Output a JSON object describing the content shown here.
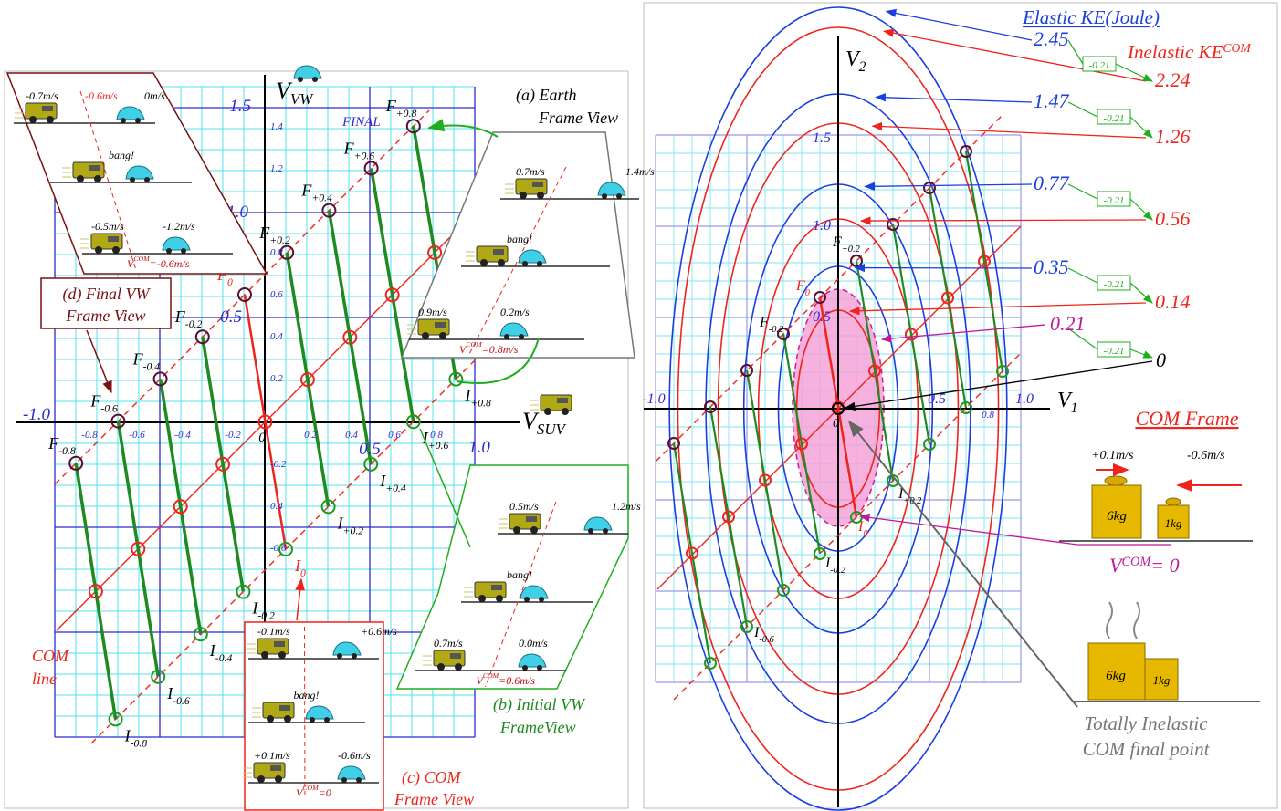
{
  "left_panel": {
    "axes": {
      "x_label": "V",
      "x_label_sub": "SUV",
      "y_label": "V",
      "y_label_sub": "VW",
      "major_y_ticks": [
        "1.5",
        "1.0",
        "0.5"
      ],
      "major_x_ticks": [
        "-1.0",
        "0.5",
        "1.0"
      ],
      "minor_y_ticks": [
        "1.4",
        "1.2",
        "0.8",
        "0.6",
        "0.4",
        "0.2",
        "-0.2",
        "0.4",
        "-0.6"
      ],
      "minor_x_ticks": [
        "-0.8",
        "-0.6",
        "-0.4",
        "-0.2",
        "0",
        "0.2",
        "0.4",
        "0.6",
        "0.8"
      ]
    },
    "final_label": "FINAL",
    "final_points": {
      "symbol": "F",
      "subs": [
        "-0.8",
        "-0.6",
        "-0.4",
        "-0.2",
        "0",
        "+0.2",
        "+0.4",
        "+0.6",
        "+0.8"
      ]
    },
    "initial_points": {
      "symbol": "I",
      "subs": [
        "-0.8",
        "-0.6",
        "-0.4",
        "-0.2",
        "0",
        "+0.2",
        "+0.4",
        "+0.6",
        "+0.8"
      ]
    },
    "com_line_label": [
      "COM",
      "line"
    ],
    "inset_a": {
      "title": [
        "(a)  Earth",
        "Frame View"
      ],
      "top_speeds": [
        "0.7m/s",
        "1.4m/s"
      ],
      "bang": "bang!",
      "bottom_speeds": [
        "0.9m/s",
        "0.2m/s"
      ],
      "v_com": {
        "symbol": "V",
        "sup": "COM",
        "value": "=0.8m/s"
      }
    },
    "inset_b": {
      "title": [
        "(b) Initial VW",
        "FrameView"
      ],
      "top_speeds": [
        "0.5m/s",
        "1.2m/s"
      ],
      "bang": "bang!",
      "bottom_speeds": [
        "0.7m/s",
        "0.0m/s"
      ],
      "v_com": {
        "symbol": "V",
        "sup": "COM",
        "value": "=0.6m/s"
      }
    },
    "inset_c": {
      "title": [
        "(c)  COM",
        "Frame View"
      ],
      "top_speeds": [
        "-0.1m/s",
        "+0.6m/s"
      ],
      "bang": "bang!",
      "bottom_speeds": [
        "+0.1m/s",
        "-0.6m/s"
      ],
      "v_com": {
        "symbol": "V",
        "sup": "COM",
        "value": "=0"
      }
    },
    "inset_d": {
      "title": [
        "(d) Final VW",
        "Frame View"
      ],
      "top_speeds": [
        "-0.7m/s",
        "-0.6m/s",
        "0m/s"
      ],
      "bang": "bang!",
      "bottom_speeds": [
        "-0.5m/s",
        "-1.2m/s"
      ],
      "v_com": {
        "symbol": "V",
        "sup": "COM",
        "value": "=-0.6m/s"
      }
    }
  },
  "right_panel": {
    "legend": {
      "elastic": "Elastic KE(Joule)",
      "inelastic": "Inelastic KE",
      "inelastic_sup": "COM"
    },
    "elastic_values": [
      "2.45",
      "1.47",
      "0.77",
      "0.35"
    ],
    "inelastic_values": [
      "2.24",
      "1.26",
      "0.56",
      "0.14"
    ],
    "com_ellipse_value": "0.21",
    "final_value": "0",
    "loss_labels": [
      "-0.21",
      "-0.21",
      "-0.21",
      "-0.21",
      "-0.21"
    ],
    "axes": {
      "x_label": "V",
      "x_label_sub": "1",
      "y_label": "V",
      "y_label_sub": "2",
      "y_ticks": [
        "1.5",
        "1.0",
        "0.5"
      ],
      "x_ticks": [
        "-1.0",
        "0.5",
        "1.0"
      ],
      "origin": "0",
      "minor_x_tick": "0.8"
    },
    "final_points": [
      {
        "symbol": "F",
        "sub": "+0.2"
      },
      {
        "symbol": "F",
        "sub": "0"
      },
      {
        "symbol": "F",
        "sub": "-0.2"
      }
    ],
    "initial_points": [
      {
        "symbol": "I",
        "sub": "+0.2"
      },
      {
        "symbol": "I",
        "sub": "0"
      },
      {
        "symbol": "I",
        "sub": "-0.2"
      },
      {
        "symbol": "I",
        "sub": "-0.6"
      }
    ],
    "com_frame": {
      "title": "COM Frame",
      "speeds": [
        "+0.1m/s",
        "-0.6m/s"
      ],
      "masses": [
        "6kg",
        "1kg"
      ],
      "v_com": {
        "symbol": "V",
        "sup": "COM",
        "value": "= 0"
      },
      "stuck_masses": [
        "6kg",
        "1kg"
      ],
      "caption": [
        "Totally Inelastic",
        "COM final point"
      ]
    }
  }
}
